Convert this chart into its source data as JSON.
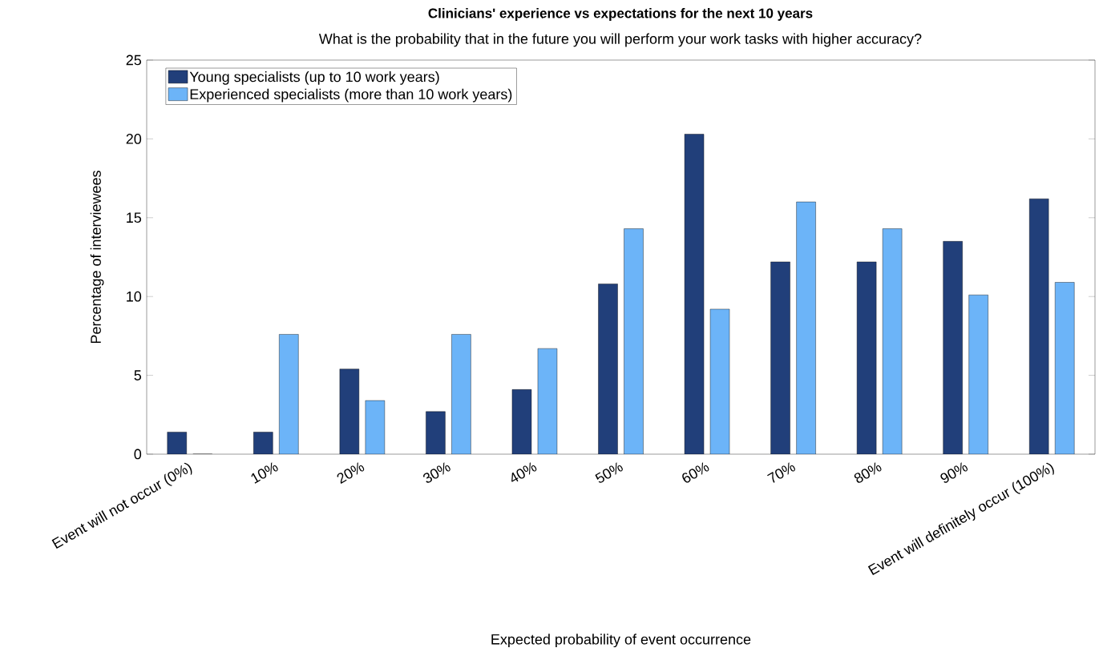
{
  "chart_data": {
    "type": "bar",
    "title": "Clinicians' experience vs expectations for the next 10 years",
    "subtitle": "What is the probability that in the future you will perform your work tasks with higher accuracy?",
    "xlabel": "Expected probability of event occurrence",
    "ylabel": "Percentage of interviewees",
    "categories": [
      "Event will not occur (0%)",
      "10%",
      "20%",
      "30%",
      "40%",
      "50%",
      "60%",
      "70%",
      "80%",
      "90%",
      "Event will definitely occur (100%)"
    ],
    "series": [
      {
        "name": "Young specialists (up to 10 work years)",
        "color": "#213f7a",
        "values": [
          1.4,
          1.4,
          5.4,
          2.7,
          4.1,
          10.8,
          20.3,
          12.2,
          12.2,
          13.5,
          16.2
        ]
      },
      {
        "name": "Experienced specialists (more than 10 work years)",
        "color": "#6cb4f8",
        "values": [
          0,
          7.6,
          3.4,
          7.6,
          6.7,
          14.3,
          9.2,
          16.0,
          14.3,
          10.1,
          10.9
        ]
      }
    ],
    "ylim": [
      0,
      25
    ],
    "yticks": [
      0,
      5,
      10,
      15,
      20,
      25
    ],
    "legend": "top left"
  }
}
